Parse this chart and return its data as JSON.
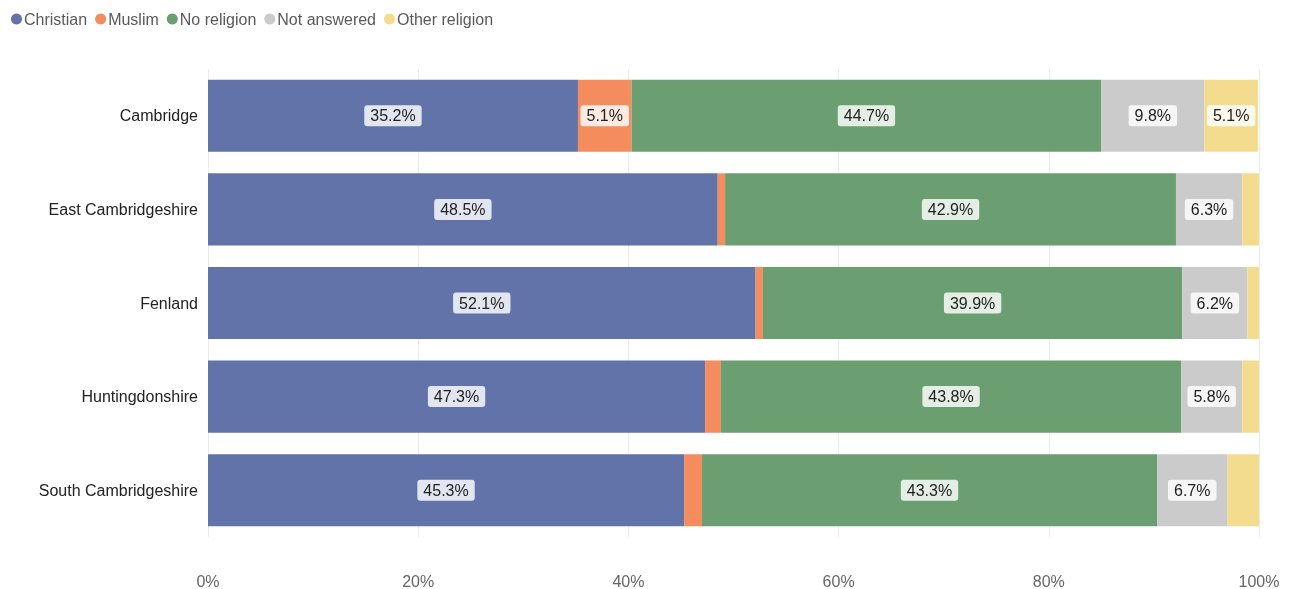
{
  "chart_data": {
    "type": "bar",
    "orientation": "horizontal",
    "stacked": true,
    "categories": [
      "Cambridge",
      "East Cambridgeshire",
      "Fenland",
      "Huntingdonshire",
      "South Cambridgeshire"
    ],
    "series": [
      {
        "name": "Christian",
        "color": "#6173a9",
        "values": [
          35.2,
          48.5,
          52.1,
          47.3,
          45.3
        ],
        "value_labels": [
          "35.2%",
          "48.5%",
          "52.1%",
          "47.3%",
          "45.3%"
        ]
      },
      {
        "name": "Muslim",
        "color": "#f58c5d",
        "values": [
          5.1,
          0.7,
          0.7,
          1.5,
          1.7
        ],
        "value_labels": [
          "5.1%",
          null,
          null,
          null,
          null
        ]
      },
      {
        "name": "No religion",
        "color": "#6b9e71",
        "values": [
          44.7,
          42.9,
          39.9,
          43.8,
          43.3
        ],
        "value_labels": [
          "44.7%",
          "42.9%",
          "39.9%",
          "43.8%",
          "43.3%"
        ]
      },
      {
        "name": "Not answered",
        "color": "#cbcbcb",
        "values": [
          9.8,
          6.3,
          6.2,
          5.8,
          6.7
        ],
        "value_labels": [
          "9.8%",
          "6.3%",
          "6.2%",
          "5.8%",
          "6.7%"
        ]
      },
      {
        "name": "Other religion",
        "color": "#f4dc8f",
        "values": [
          5.1,
          1.6,
          1.1,
          1.6,
          3.0
        ],
        "value_labels": [
          "5.1%",
          null,
          null,
          null,
          null
        ]
      }
    ],
    "xlim": [
      0,
      100
    ],
    "xticks": [
      {
        "value": 0,
        "label": "0%"
      },
      {
        "value": 20,
        "label": "20%"
      },
      {
        "value": 40,
        "label": "40%"
      },
      {
        "value": 60,
        "label": "60%"
      },
      {
        "value": 80,
        "label": "80%"
      },
      {
        "value": 100,
        "label": "100%"
      }
    ],
    "grid": "x",
    "legend": "top left"
  }
}
